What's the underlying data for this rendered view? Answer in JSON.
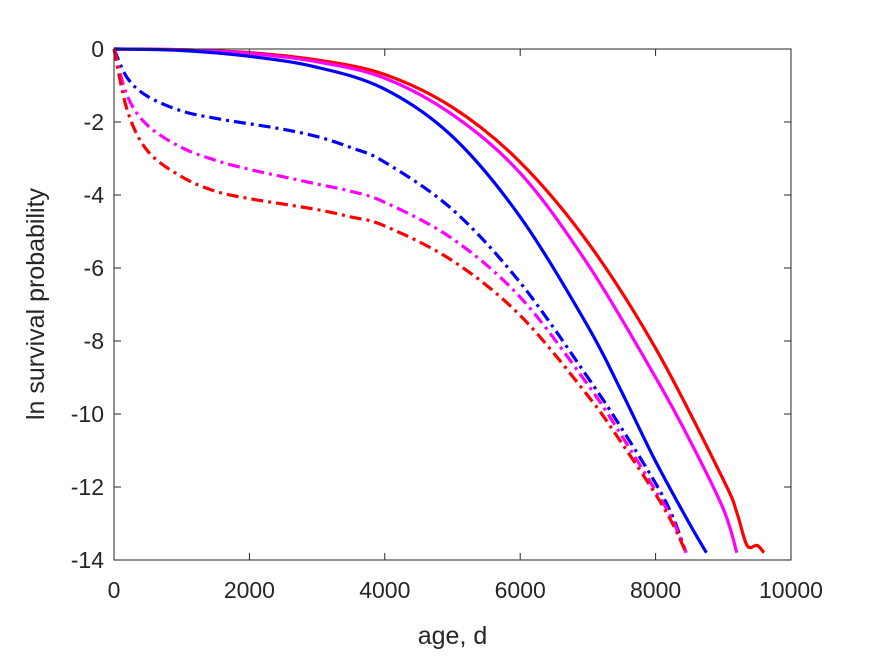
{
  "chart_data": {
    "type": "line",
    "xlabel": "age, d",
    "ylabel": "ln survival probability",
    "xlim": [
      0,
      10000
    ],
    "ylim": [
      -14,
      0
    ],
    "xticks": [
      0,
      2000,
      4000,
      6000,
      8000,
      10000
    ],
    "yticks": [
      0,
      -2,
      -4,
      -6,
      -8,
      -10,
      -12,
      -14
    ],
    "xtick_labels": [
      "0",
      "2000",
      "4000",
      "6000",
      "8000",
      "10000"
    ],
    "ytick_labels": [
      "0",
      "-2",
      "-4",
      "-6",
      "-8",
      "-10",
      "-12",
      "-14"
    ],
    "grid": false,
    "legend": "none",
    "series": [
      {
        "color": "#ff0000",
        "style": "solid",
        "x": [
          0,
          1000,
          2000,
          3000,
          4000,
          5000,
          6000,
          7000,
          8000,
          9000,
          9200,
          9350,
          9500,
          9600
        ],
        "y": [
          0,
          -0.02,
          -0.1,
          -0.3,
          -0.7,
          -1.6,
          -3.1,
          -5.3,
          -8.2,
          -11.8,
          -12.7,
          -13.6,
          -13.6,
          -13.8
        ]
      },
      {
        "color": "#ff00ff",
        "style": "solid",
        "x": [
          0,
          1000,
          2000,
          3000,
          4000,
          5000,
          6000,
          7000,
          8000,
          8500,
          9000,
          9200
        ],
        "y": [
          0,
          -0.02,
          -0.12,
          -0.35,
          -0.8,
          -1.8,
          -3.4,
          -5.9,
          -9.0,
          -10.7,
          -12.6,
          -13.8
        ]
      },
      {
        "color": "#0000ff",
        "style": "solid",
        "x": [
          0,
          1000,
          2000,
          3000,
          4000,
          5000,
          6000,
          7000,
          7500,
          8000,
          8500,
          8750
        ],
        "y": [
          0,
          -0.04,
          -0.2,
          -0.5,
          -1.1,
          -2.4,
          -4.6,
          -7.6,
          -9.4,
          -11.3,
          -13.0,
          -13.8
        ]
      },
      {
        "color": "#0000ff",
        "style": "dashdot",
        "x": [
          0,
          200,
          500,
          1000,
          1500,
          2000,
          2500,
          3000,
          3500,
          4000,
          5000,
          6000,
          7000,
          7500,
          8000,
          8250,
          8450
        ],
        "y": [
          0,
          -0.8,
          -1.3,
          -1.7,
          -1.9,
          -2.05,
          -2.2,
          -2.4,
          -2.7,
          -3.1,
          -4.4,
          -6.4,
          -9.0,
          -10.4,
          -11.9,
          -12.8,
          -13.8
        ]
      },
      {
        "color": "#ff00ff",
        "style": "dashdot",
        "x": [
          0,
          200,
          500,
          1000,
          1500,
          2000,
          2500,
          3000,
          3500,
          4000,
          5000,
          6000,
          7000,
          7500,
          8000,
          8250,
          8450
        ],
        "y": [
          0,
          -1.3,
          -2.1,
          -2.7,
          -3.05,
          -3.3,
          -3.5,
          -3.7,
          -3.9,
          -4.2,
          -5.2,
          -6.8,
          -9.2,
          -10.6,
          -12.1,
          -12.9,
          -13.8
        ]
      },
      {
        "color": "#ff0000",
        "style": "dashdot",
        "x": [
          0,
          200,
          500,
          1000,
          1500,
          2000,
          2500,
          3000,
          3500,
          4000,
          5000,
          6000,
          7000,
          7500,
          8000,
          8250,
          8450
        ],
        "y": [
          0,
          -1.7,
          -2.8,
          -3.5,
          -3.9,
          -4.1,
          -4.25,
          -4.4,
          -4.6,
          -4.85,
          -5.8,
          -7.3,
          -9.5,
          -10.8,
          -12.2,
          -13.0,
          -13.8
        ]
      }
    ]
  }
}
